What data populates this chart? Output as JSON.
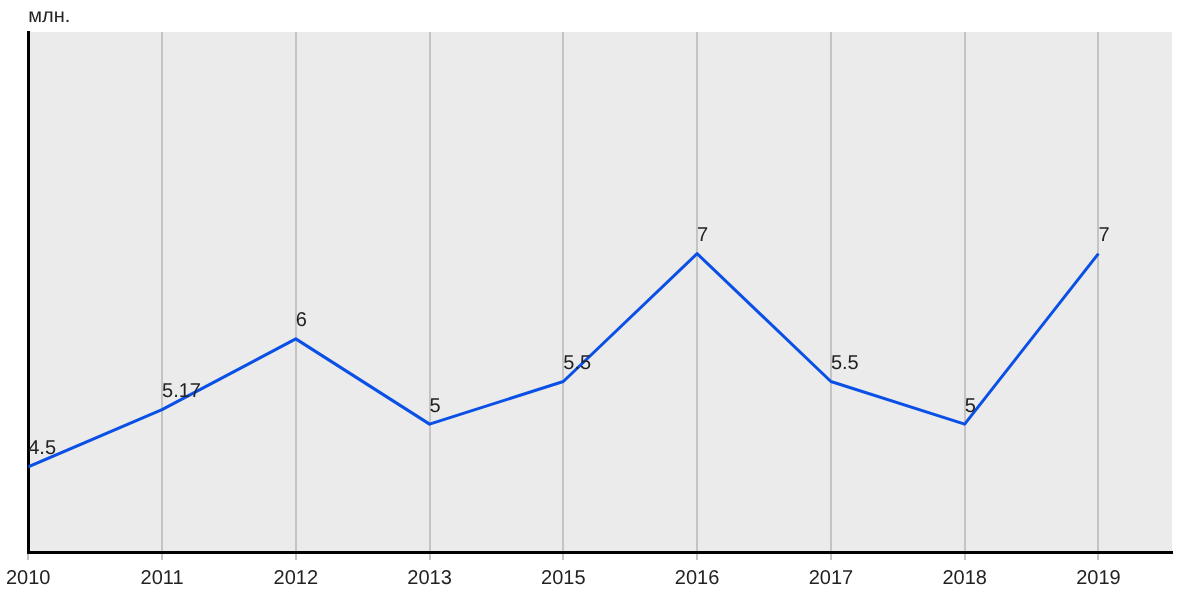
{
  "chart_data": {
    "type": "line",
    "ylabel": "млн.",
    "categories": [
      "2010",
      "2011",
      "2012",
      "2013",
      "2015",
      "2016",
      "2017",
      "2018",
      "2019"
    ],
    "series": [
      {
        "color": "#0a50e6",
        "values": [
          4.5,
          5.17,
          6,
          5,
          5.5,
          7,
          5.5,
          5,
          7
        ]
      }
    ],
    "ylim": [
      3.5,
      9.6
    ],
    "tick_labels": "x",
    "grid": "x",
    "data_labels": true,
    "marker": "none",
    "line_style": "solid",
    "legend": false
  }
}
